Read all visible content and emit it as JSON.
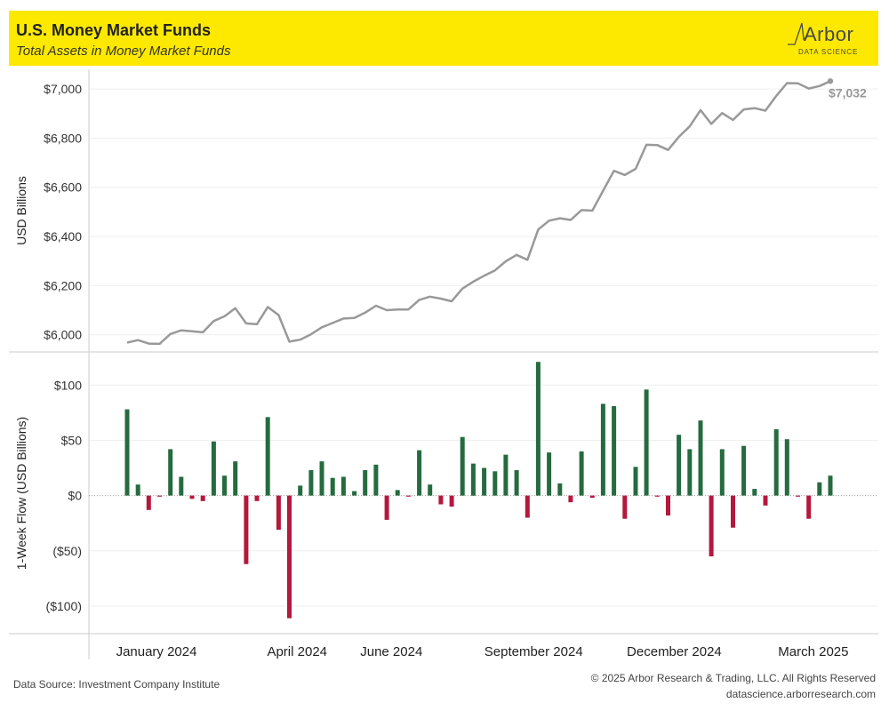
{
  "header": {
    "title": "U.S. Money Market Funds",
    "subtitle": "Total Assets in Money Market Funds",
    "logo_name": "Arbor",
    "logo_sub": "DATA SCIENCE"
  },
  "footer": {
    "source": "Data Source: Investment Company Institute",
    "copyright": "© 2025 Arbor Research & Trading, LLC. All Rights Reserved",
    "website": "datascience.arborresearch.com"
  },
  "colors": {
    "header_bg": "#fde900",
    "line": "#999999",
    "positive": "#256b3f",
    "negative": "#b5173d"
  },
  "chart_data": [
    {
      "type": "line",
      "ylabel": "USD Billions",
      "ylim": [
        5930,
        7080
      ],
      "yticks": [
        6000,
        6200,
        6400,
        6600,
        6800,
        7000
      ],
      "ytick_labels": [
        "$6,000",
        "$6,200",
        "$6,400",
        "$6,600",
        "$6,800",
        "$7,000"
      ],
      "end_label": "$7,032",
      "x_start": "2023-12-27",
      "x_step_days": 7,
      "grid": true,
      "values": [
        5968,
        5978,
        5964,
        5963,
        6003,
        6018,
        6014,
        6010,
        6056,
        6075,
        6108,
        6046,
        6043,
        6113,
        6080,
        5972,
        5980,
        6002,
        6030,
        6048,
        6066,
        6068,
        6090,
        6118,
        6100,
        6103,
        6103,
        6142,
        6155,
        6147,
        6136,
        6188,
        6216,
        6240,
        6262,
        6299,
        6325,
        6305,
        6428,
        6464,
        6474,
        6467,
        6507,
        6505,
        6586,
        6667,
        6650,
        6675,
        6773,
        6772,
        6752,
        6805,
        6848,
        6914,
        6858,
        6902,
        6874,
        6917,
        6922,
        6912,
        6972,
        7024,
        7023,
        7002,
        7012,
        7032
      ]
    },
    {
      "type": "bar",
      "ylabel": "1-Week Flow (USD Billions)",
      "ylim": [
        -125,
        130
      ],
      "yticks": [
        100,
        50,
        0,
        -50,
        -100
      ],
      "ytick_labels": [
        "$100",
        "$50",
        "$0",
        "($50)",
        "($100)"
      ],
      "x_start": "2023-12-27",
      "x_step_days": 7,
      "grid": true,
      "values": [
        78,
        10,
        -13,
        -1,
        42,
        17,
        -3,
        -5,
        49,
        18,
        31,
        -62,
        -5,
        71,
        -31,
        -111,
        9,
        23,
        31,
        16,
        17,
        4,
        23,
        28,
        -22,
        5,
        -1,
        41,
        10,
        -8,
        -10,
        53,
        29,
        25,
        22,
        37,
        23,
        -20,
        121,
        39,
        11,
        -6,
        40,
        -2,
        83,
        81,
        -21,
        26,
        96,
        -1,
        -18,
        55,
        42,
        68,
        -55,
        42,
        -29,
        45,
        6,
        -9,
        60,
        51,
        -1,
        -21,
        12,
        18
      ]
    }
  ],
  "x_axis": {
    "tick_labels": [
      "January 2024",
      "April 2024",
      "June 2024",
      "September 2024",
      "December 2024",
      "March 2025"
    ],
    "tick_dates": [
      "2024-01-15",
      "2024-04-15",
      "2024-06-15",
      "2024-09-15",
      "2024-12-15",
      "2025-03-15"
    ]
  }
}
